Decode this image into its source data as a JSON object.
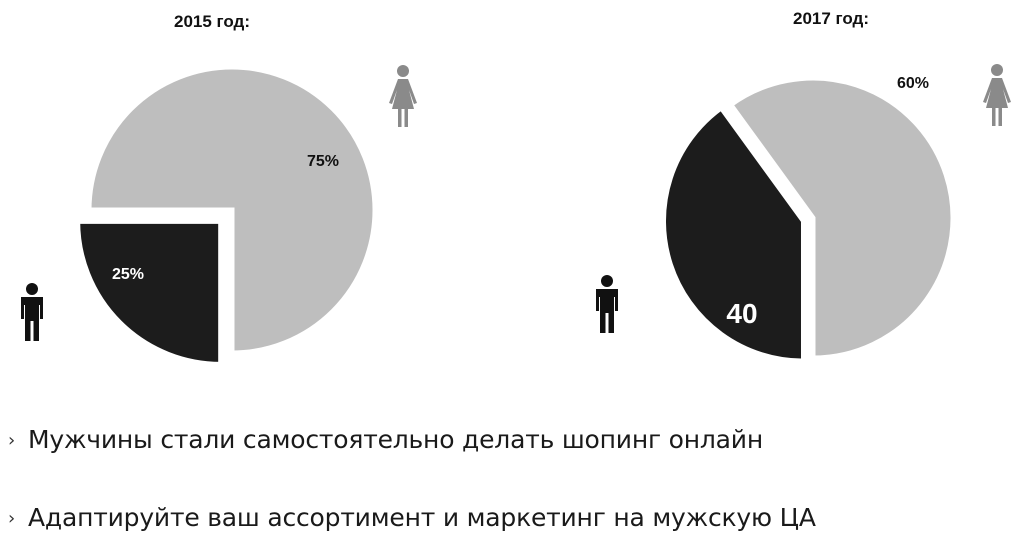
{
  "colors": {
    "men": "#1c1c1c",
    "women": "#bebebe",
    "slice_gap": "#ffffff",
    "text": "#111111",
    "icon_women": "#8a8a8a",
    "icon_men": "#111111"
  },
  "chart_data": [
    {
      "type": "pie",
      "title": "2015 год:",
      "slices": [
        {
          "label": "25%",
          "value": 25,
          "color": "#1c1c1c",
          "icon": "man-icon",
          "exploded": true
        },
        {
          "label": "75%",
          "value": 75,
          "color": "#bebebe",
          "icon": "woman-icon",
          "exploded": false
        }
      ]
    },
    {
      "type": "pie",
      "title": "2017 год:",
      "slices": [
        {
          "label": "40",
          "value": 40,
          "color": "#1c1c1c",
          "icon": "man-icon",
          "exploded": true
        },
        {
          "label": "60%",
          "value": 60,
          "color": "#bebebe",
          "icon": "woman-icon",
          "exploded": false
        }
      ]
    }
  ],
  "bullets": [
    "Мужчины стали самостоятельно делать шопинг онлайн",
    "Адаптируйте ваш ассортимент и маркетинг на мужскую ЦА"
  ],
  "bullet_marker": "›"
}
